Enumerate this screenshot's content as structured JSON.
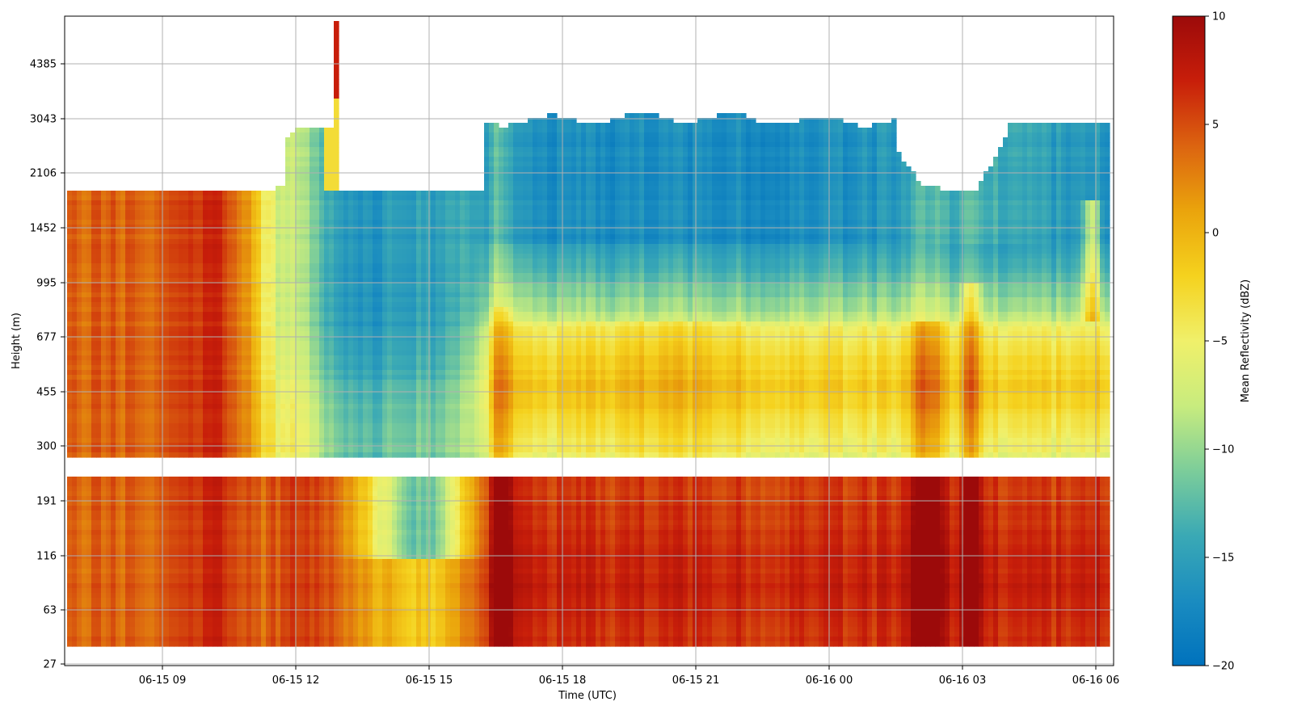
{
  "chart_data": {
    "type": "heatmap",
    "title": "",
    "xlabel": "Time (UTC)",
    "ylabel": "Height (m)",
    "x_ticks": [
      "06-15 09",
      "06-15 12",
      "06-15 15",
      "06-15 18",
      "06-15 21",
      "06-16 00",
      "06-16 03",
      "06-16 06"
    ],
    "x_tick_hours": [
      9,
      12,
      15,
      18,
      21,
      24,
      27,
      30
    ],
    "x_range_hours": [
      6.8,
      30.4
    ],
    "y_ticks": [
      "27",
      "63",
      "116",
      "191",
      "300",
      "455",
      "677",
      "995",
      "1452",
      "2106",
      "3043",
      "4385"
    ],
    "colorbar": {
      "label": "Mean Reflectivity (dBZ)",
      "ticks": [
        "10",
        "5",
        "0",
        "−5",
        "−10",
        "−15",
        "−20"
      ],
      "range": [
        -20,
        10
      ],
      "colormap": [
        "#0072bd",
        "#1a8cc0",
        "#3aa9b5",
        "#7ccd9a",
        "#c8ec7e",
        "#f0f06a",
        "#f5d21e",
        "#eaa40c",
        "#dc6410",
        "#c81e0a",
        "#9c0a0a"
      ]
    },
    "grid": true,
    "description_of_field": [
      {
        "time_range": [
          "06-15 06:50",
          "06-15 11:40"
        ],
        "height_range": [
          40,
          1850
        ],
        "mean_dBZ": 4
      },
      {
        "time_range": [
          "06-15 11:40",
          "06-15 16:20"
        ],
        "height_range": [
          300,
          1850
        ],
        "mean_dBZ": -14
      },
      {
        "time_range": [
          "06-15 14:00",
          "06-15 15:30"
        ],
        "height_range": [
          116,
          200
        ],
        "mean_dBZ": -12
      },
      {
        "time_range": [
          "06-15 16:20",
          "06-16 06:10"
        ],
        "height_range": [
          1452,
          3000
        ],
        "mean_dBZ": -17
      },
      {
        "time_range": [
          "06-15 16:20",
          "06-16 06:10"
        ],
        "height_range": [
          300,
          700
        ],
        "mean_dBZ": -3
      },
      {
        "time_range": [
          "06-15 16:20",
          "06-16 06:10"
        ],
        "height_range": [
          40,
          200
        ],
        "mean_dBZ": 6
      }
    ]
  }
}
